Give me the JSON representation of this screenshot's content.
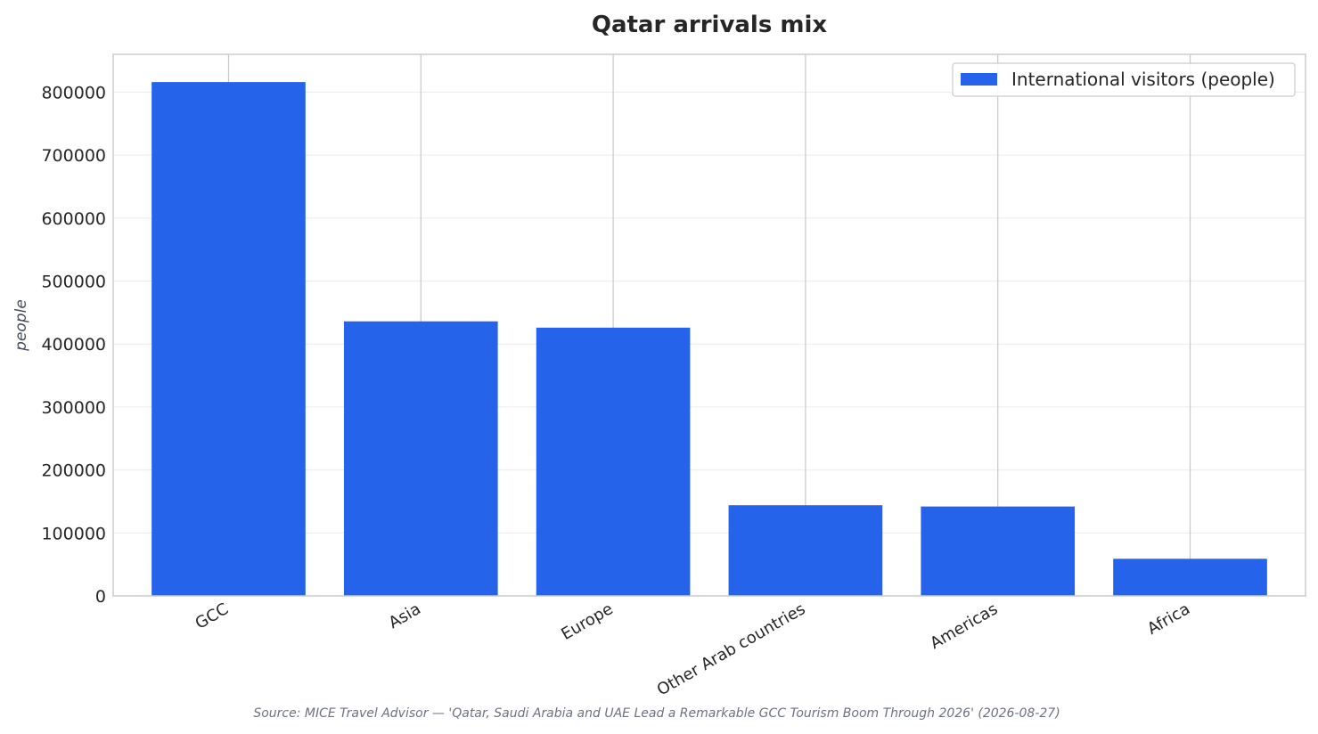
{
  "chart_data": {
    "type": "bar",
    "title": "Qatar arrivals mix",
    "ylabel": "people",
    "xlabel": "",
    "categories": [
      "GCC",
      "Asia",
      "Europe",
      "Other Arab countries",
      "Americas",
      "Africa"
    ],
    "series": [
      {
        "name": "International visitors (people)",
        "values": [
          816000,
          436000,
          426000,
          144000,
          142000,
          59000
        ],
        "color": "#2563eb"
      }
    ],
    "ylim": [
      0,
      860000
    ],
    "yticks": [
      0,
      100000,
      200000,
      300000,
      400000,
      500000,
      600000,
      700000,
      800000
    ],
    "grid": true,
    "legend_position": "top-right"
  },
  "source": "Source: MICE Travel Advisor — 'Qatar, Saudi Arabia and UAE Lead a Remarkable GCC Tourism Boom Through 2026' (2026-08-27)"
}
